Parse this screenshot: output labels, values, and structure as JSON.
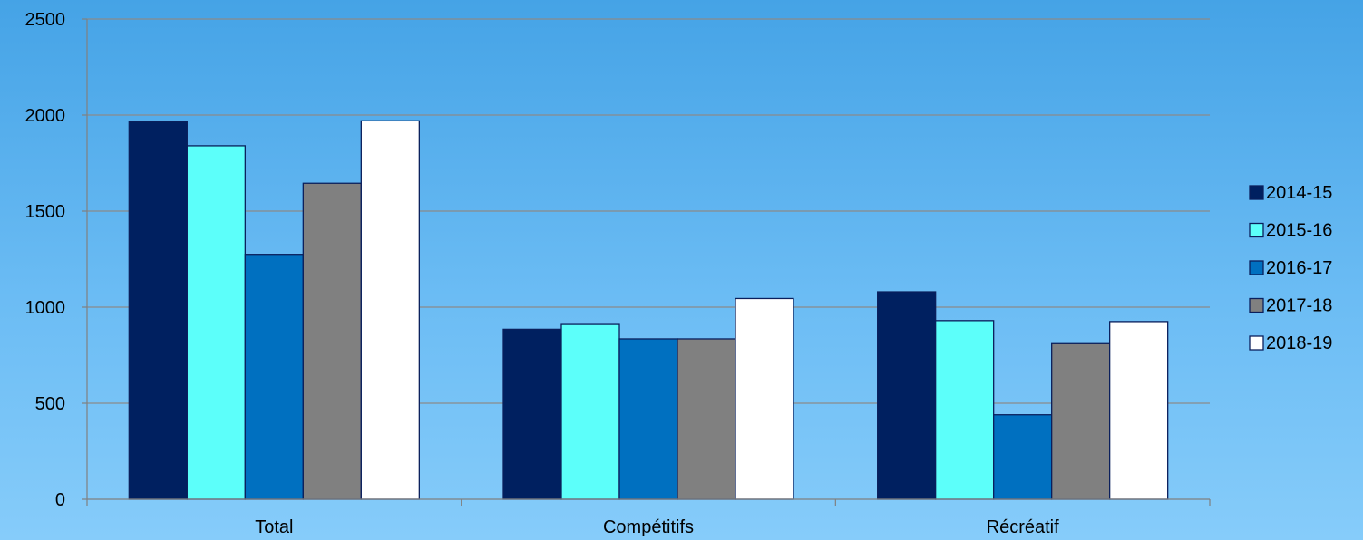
{
  "chart_data": {
    "type": "bar",
    "categories": [
      "Total",
      "Compétitifs",
      "Récréatif"
    ],
    "series": [
      {
        "name": "2014-15",
        "color": "#002060",
        "values": [
          1965,
          885,
          1080
        ]
      },
      {
        "name": "2015-16",
        "color": "#5cfffa",
        "values": [
          1840,
          910,
          930
        ]
      },
      {
        "name": "2016-17",
        "color": "#0070c0",
        "values": [
          1275,
          835,
          440
        ]
      },
      {
        "name": "2017-18",
        "color": "#808080",
        "values": [
          1645,
          835,
          810
        ]
      },
      {
        "name": "2018-19",
        "color": "#ffffff",
        "values": [
          1970,
          1045,
          925
        ]
      }
    ],
    "y_ticks": [
      "0",
      "500",
      "1000",
      "1500",
      "2000",
      "2500"
    ],
    "ylim": [
      0,
      2500
    ],
    "grid": true,
    "legend_position": "right"
  }
}
